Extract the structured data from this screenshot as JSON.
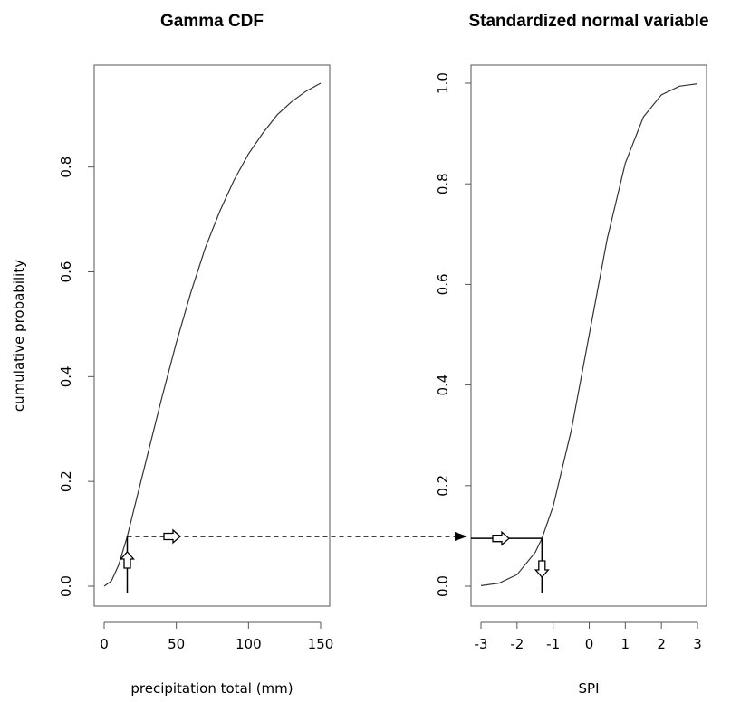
{
  "chart_data": [
    {
      "type": "line",
      "title": "Gamma CDF",
      "xlabel": "precipitation total (mm)",
      "ylabel": "cumulative probability",
      "xlim": [
        0,
        150
      ],
      "ylim": [
        0,
        0.95
      ],
      "x_ticks": [
        0,
        50,
        100,
        150
      ],
      "x_tick_labels": [
        "0",
        "50",
        "100",
        "150"
      ],
      "y_ticks": [
        0.0,
        0.2,
        0.4,
        0.6,
        0.8
      ],
      "y_tick_labels": [
        "0.0",
        "0.2",
        "0.4",
        "0.6",
        "0.8"
      ],
      "grid": false,
      "series": [
        {
          "x": [
            0,
            5,
            10,
            16,
            20,
            30,
            40,
            50,
            60,
            70,
            80,
            90,
            100,
            110,
            120,
            130,
            140,
            150
          ],
          "y": [
            0,
            0.01,
            0.04,
            0.095,
            0.14,
            0.25,
            0.36,
            0.465,
            0.56,
            0.645,
            0.715,
            0.775,
            0.825,
            0.865,
            0.9,
            0.925,
            0.945,
            0.96
          ]
        }
      ],
      "annotations": [
        {
          "kind": "arrow-up",
          "x": 16,
          "y_from": -0.01,
          "y_to": 0.095
        },
        {
          "kind": "arrow-right-dashed",
          "y": 0.095,
          "from_x": 16,
          "to": "SPI panel"
        }
      ]
    },
    {
      "type": "line",
      "title": "Standardized normal variable",
      "xlabel": "SPI",
      "ylabel": "",
      "xlim": [
        -3,
        3
      ],
      "ylim": [
        0,
        1.0
      ],
      "x_ticks": [
        -3,
        -2,
        -1,
        0,
        1,
        2,
        3
      ],
      "x_tick_labels": [
        "-3",
        "-2",
        "-1",
        "0",
        "1",
        "2",
        "3"
      ],
      "y_ticks": [
        0.0,
        0.2,
        0.4,
        0.6,
        0.8,
        1.0
      ],
      "y_tick_labels": [
        "0.0",
        "0.2",
        "0.4",
        "0.6",
        "0.8",
        "1.0"
      ],
      "grid": false,
      "series": [
        {
          "x": [
            -3,
            -2.5,
            -2,
            -1.5,
            -1.31,
            -1,
            -0.5,
            0,
            0.5,
            1,
            1.5,
            2,
            2.5,
            3
          ],
          "y": [
            0.001,
            0.006,
            0.023,
            0.067,
            0.095,
            0.159,
            0.309,
            0.5,
            0.691,
            0.841,
            0.933,
            0.977,
            0.994,
            0.999
          ]
        }
      ],
      "annotations": [
        {
          "kind": "arrow-right",
          "y": 0.095,
          "from_x": -3,
          "to_x": -1.31
        },
        {
          "kind": "arrow-down",
          "x": -1.31,
          "y_from": 0.095,
          "y_to": -0.01
        }
      ]
    }
  ]
}
